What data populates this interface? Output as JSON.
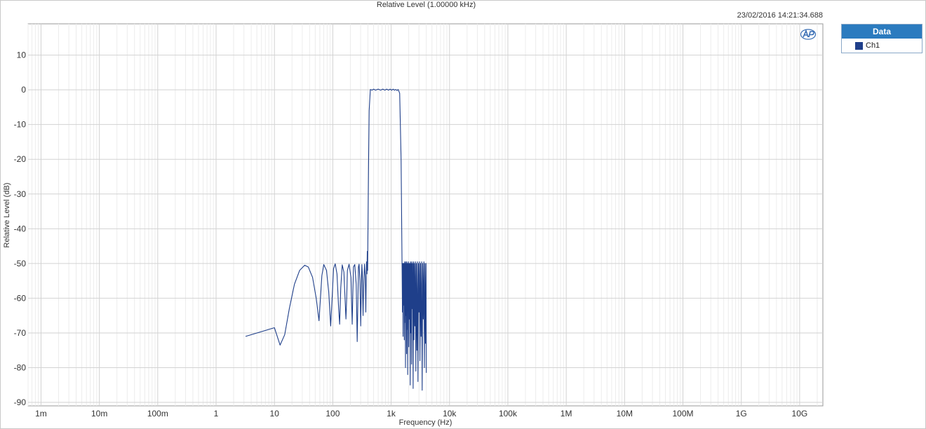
{
  "chart_data": {
    "type": "line",
    "title": "Relative Level (1.00000 kHz)",
    "timestamp": "23/02/2016 14:21:34.688",
    "xlabel": "Frequency (Hz)",
    "ylabel": "Relative Level (dB)",
    "xscale": "log",
    "xlim": [
      0.0006,
      25000000000
    ],
    "ylim": [
      -91,
      19
    ],
    "grid": true,
    "legend": {
      "title": "Data",
      "placement": "right",
      "entries": [
        {
          "name": "Ch1",
          "color": "#1f3f8a"
        }
      ]
    },
    "x_ticks": [
      {
        "value": 0.001,
        "label": "1m"
      },
      {
        "value": 0.01,
        "label": "10m"
      },
      {
        "value": 0.1,
        "label": "100m"
      },
      {
        "value": 1,
        "label": "1"
      },
      {
        "value": 10,
        "label": "10"
      },
      {
        "value": 100,
        "label": "100"
      },
      {
        "value": 1000,
        "label": "1k"
      },
      {
        "value": 10000,
        "label": "10k"
      },
      {
        "value": 100000,
        "label": "100k"
      },
      {
        "value": 1000000,
        "label": "1M"
      },
      {
        "value": 10000000,
        "label": "10M"
      },
      {
        "value": 100000000,
        "label": "100M"
      },
      {
        "value": 1000000000,
        "label": "1G"
      },
      {
        "value": 10000000000,
        "label": "10G"
      }
    ],
    "y_ticks": [
      {
        "value": 10,
        "label": "10"
      },
      {
        "value": 0,
        "label": "0"
      },
      {
        "value": -10,
        "label": "-10"
      },
      {
        "value": -20,
        "label": "-20"
      },
      {
        "value": -30,
        "label": "-30"
      },
      {
        "value": -40,
        "label": "-40"
      },
      {
        "value": -50,
        "label": "-50"
      },
      {
        "value": -60,
        "label": "-60"
      },
      {
        "value": -70,
        "label": "-70"
      },
      {
        "value": -80,
        "label": "-80"
      },
      {
        "value": -90,
        "label": "-90"
      }
    ],
    "series": [
      {
        "name": "Ch1",
        "color": "#1f3f8a",
        "x": [
          3.2,
          10,
          12.5,
          15,
          18,
          22,
          27,
          33,
          38,
          45,
          52,
          58,
          62,
          65,
          70,
          78,
          85,
          92,
          98,
          103,
          110,
          118,
          126,
          131,
          137,
          145,
          155,
          168,
          173,
          178,
          190,
          205,
          215,
          221,
          226,
          238,
          252,
          262,
          270,
          275,
          282,
          292,
          301,
          309,
          315,
          320,
          330,
          340,
          350,
          360,
          368,
          375,
          378,
          380,
          385,
          390,
          395,
          410,
          420,
          440,
          470,
          500,
          540,
          600,
          660,
          720,
          780,
          840,
          900,
          960,
          1020,
          1080,
          1140,
          1200,
          1260,
          1320,
          1400,
          1480,
          1540,
          1560,
          1580,
          1600,
          1620,
          1640,
          1660,
          1680,
          1700,
          1720,
          1740,
          1760,
          1780,
          1800,
          1820,
          1840,
          1860,
          1880,
          1900,
          1920,
          1940,
          1960,
          1980,
          2000,
          2030,
          2060,
          2090,
          2120,
          2150,
          2180,
          2210,
          2240,
          2270,
          2300,
          2340,
          2380,
          2420,
          2460,
          2500,
          2550,
          2600,
          2650,
          2700,
          2760,
          2820,
          2880,
          2940,
          3000,
          3060,
          3120,
          3190,
          3260,
          3330,
          3400,
          3480,
          3560,
          3640,
          3720,
          3800,
          3880,
          3960,
          4000
        ],
        "y": [
          -71,
          -68.5,
          -73.5,
          -70.5,
          -63,
          -56,
          -52,
          -50.5,
          -51,
          -54,
          -60,
          -66.5,
          -59,
          -53.5,
          -50.3,
          -52,
          -58,
          -68,
          -59,
          -51.5,
          -50.1,
          -53,
          -63,
          -67.5,
          -57,
          -50.4,
          -52.5,
          -66,
          -60,
          -52,
          -50.2,
          -54,
          -67.5,
          -58,
          -51,
          -50.3,
          -56,
          -72.5,
          -60,
          -51,
          -50.2,
          -55,
          -68,
          -56,
          -50.3,
          -52.5,
          -65,
          -55,
          -50.2,
          -54,
          -64,
          -53,
          -50,
          -49.5,
          -53,
          -46.5,
          -52,
          -22,
          -6,
          0.1,
          -0.1,
          0.2,
          -0.1,
          0.2,
          -0.1,
          0.2,
          -0.1,
          0.2,
          -0.1,
          0.2,
          -0.1,
          0.2,
          -0.1,
          0.1,
          -0.2,
          0.1,
          -1,
          -20,
          -52,
          -64,
          -50,
          -71,
          -50,
          -62,
          -50,
          -72,
          -49.5,
          -67,
          -50,
          -80,
          -49.5,
          -65,
          -50,
          -76,
          -49.5,
          -69,
          -50,
          -82,
          -50,
          -61,
          -49.5,
          -74,
          -50,
          -66,
          -50,
          -85,
          -49.5,
          -70,
          -50,
          -79,
          -49.5,
          -63,
          -50,
          -86,
          -49.5,
          -72,
          -50,
          -68,
          -49.5,
          -81,
          -50,
          -75,
          -49.5,
          -84,
          -50,
          -64,
          -49.5,
          -78,
          -50,
          -71,
          -49.5,
          -86.5,
          -50,
          -66,
          -49.5,
          -80,
          -50,
          -73,
          -50,
          -81.5
        ]
      }
    ]
  }
}
